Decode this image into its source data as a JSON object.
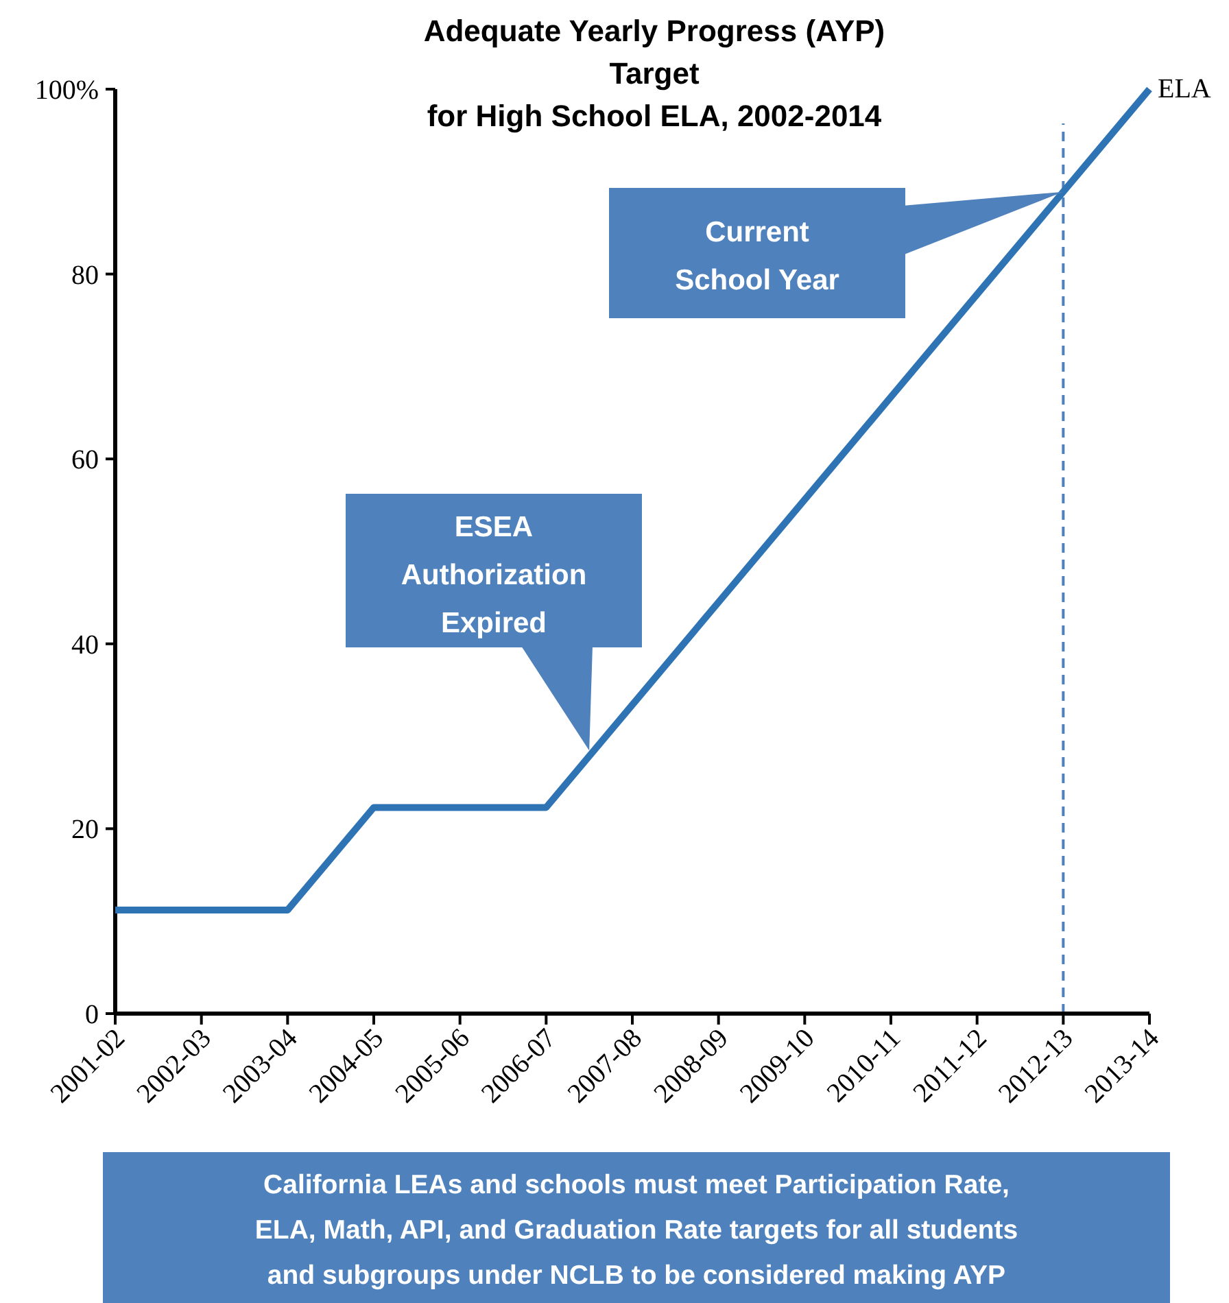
{
  "chart_data": {
    "type": "line",
    "title": "Adequate Yearly Progress (AYP)\nTarget\nfor High School ELA, 2002-2014",
    "categories": [
      "2001-02",
      "2002-03",
      "2003-04",
      "2004-05",
      "2005-06",
      "2006-07",
      "2007-08",
      "2008-09",
      "2009-10",
      "2010-11",
      "2011-12",
      "2012-13",
      "2013-14"
    ],
    "series": [
      {
        "name": "ELA",
        "color": "#2e74b5",
        "values": [
          11.2,
          11.2,
          11.2,
          22.3,
          22.3,
          22.3,
          33.4,
          44.5,
          55.6,
          66.7,
          77.8,
          88.9,
          100
        ]
      }
    ],
    "ylim": [
      0,
      100
    ],
    "yticks": [
      0,
      20,
      40,
      60,
      80,
      {
        "value": 100,
        "label": "100%"
      }
    ],
    "grid": false,
    "legend": false,
    "marker": "none",
    "line_style": "solid",
    "ref_lines": [
      {
        "axis": "x",
        "value": "2012-13",
        "color": "#4f81bd",
        "line_style": "dashed"
      }
    ],
    "annotations": [
      "ESEA\nAuthorization\nExpired",
      "Current\nSchool Year",
      "California LEAs and schools must meet Participation Rate,\nELA, Math, API, and Graduation Rate targets for all students\nand subgroups under NCLB to be considered making AYP"
    ]
  }
}
